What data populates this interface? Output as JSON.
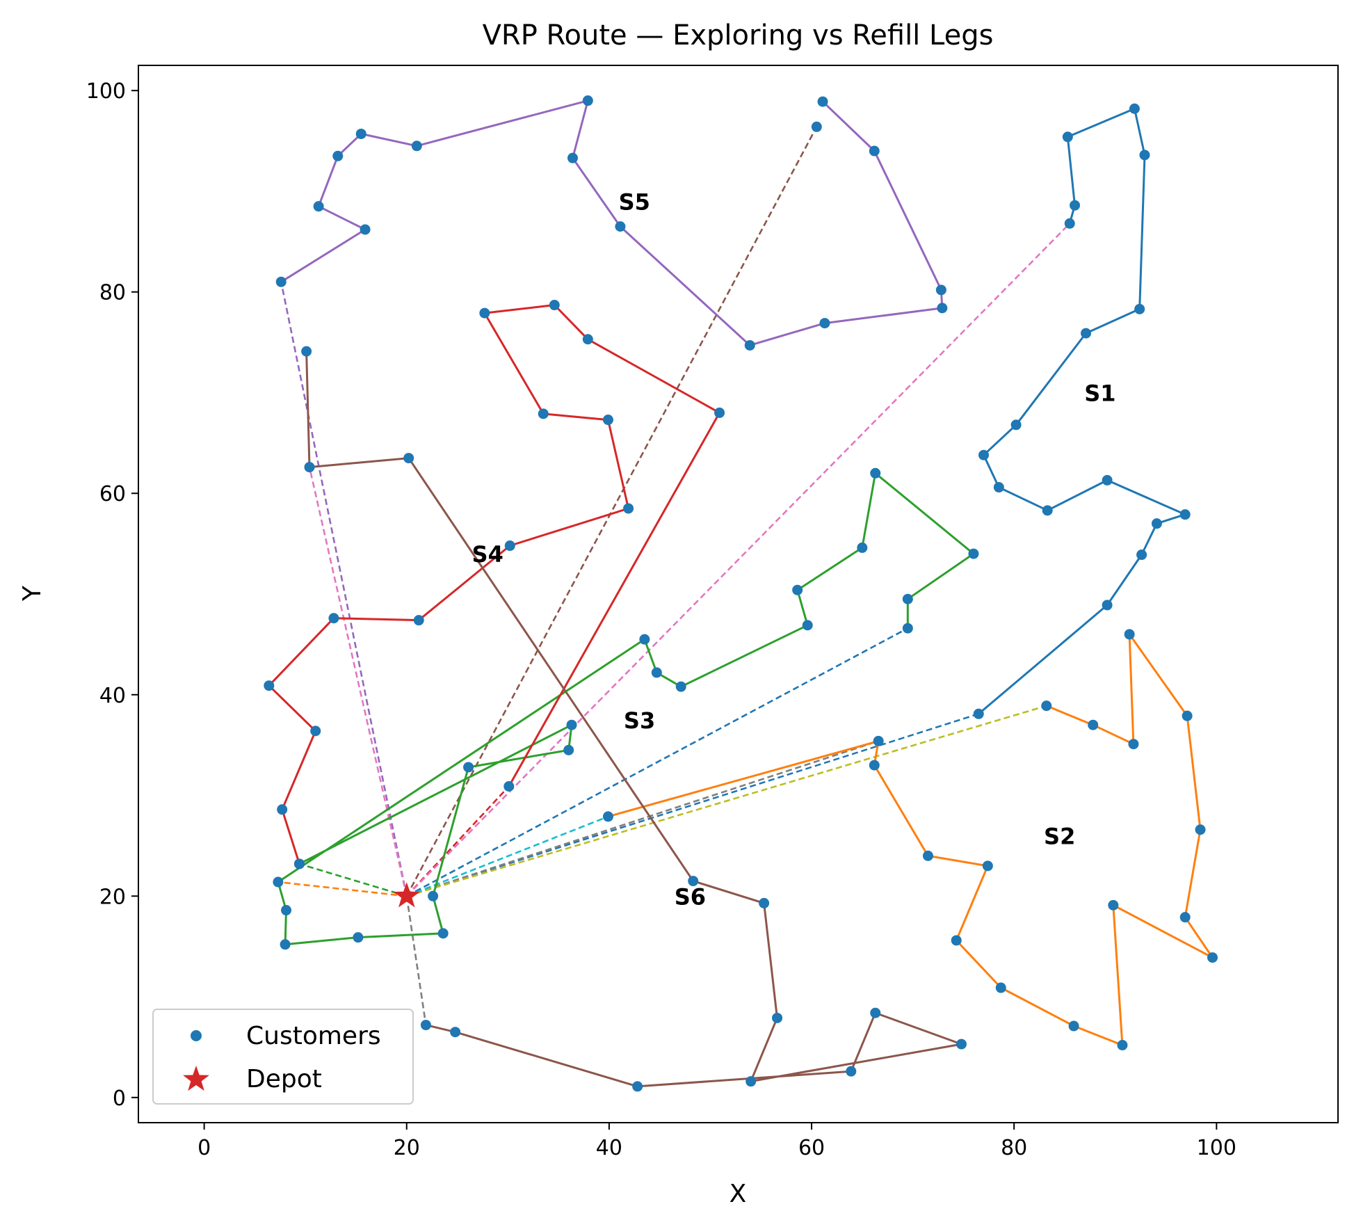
{
  "chart_data": {
    "type": "scatter",
    "title": "VRP Route — Exploring vs Refill Legs",
    "xlabel": "X",
    "ylabel": "Y",
    "xlim": [
      -6.5,
      112
    ],
    "ylim": [
      -2.5,
      102.5
    ],
    "xticks": [
      0,
      20,
      40,
      60,
      80,
      100
    ],
    "yticks": [
      0,
      20,
      40,
      60,
      80,
      100
    ],
    "grid": false,
    "legend": {
      "placement": "lower-left",
      "entries": [
        {
          "label": "Customers",
          "marker": "circle",
          "color": "#1f77b4"
        },
        {
          "label": "Depot",
          "marker": "star",
          "color": "#d62728"
        }
      ]
    },
    "depot": {
      "x": 20,
      "y": 20,
      "color": "#d62728"
    },
    "customer_color": "#1f77b4",
    "exploring_legs": [
      {
        "name": "S1",
        "label_pos": [
          88.5,
          70
        ],
        "color": "#1f77b4",
        "points": [
          [
            85.5,
            86.8
          ],
          [
            86.0,
            88.6
          ],
          [
            85.3,
            95.4
          ],
          [
            91.9,
            98.2
          ],
          [
            92.9,
            93.6
          ],
          [
            92.4,
            78.3
          ],
          [
            87.1,
            75.9
          ],
          [
            80.2,
            66.8
          ],
          [
            77.0,
            63.8
          ],
          [
            78.5,
            60.6
          ],
          [
            83.3,
            58.3
          ],
          [
            89.2,
            61.3
          ],
          [
            96.9,
            57.9
          ],
          [
            94.1,
            57.0
          ],
          [
            92.6,
            53.9
          ],
          [
            89.2,
            48.9
          ],
          [
            76.5,
            38.1
          ]
        ]
      },
      {
        "name": "S2",
        "label_pos": [
          84.5,
          26
        ],
        "color": "#ff7f0e",
        "points": [
          [
            39.9,
            27.9
          ],
          [
            66.6,
            35.4
          ],
          [
            66.2,
            33.0
          ],
          [
            71.5,
            24.0
          ],
          [
            77.4,
            23.0
          ],
          [
            74.3,
            15.6
          ],
          [
            78.7,
            10.9
          ],
          [
            85.9,
            7.1
          ],
          [
            90.7,
            5.2
          ],
          [
            89.8,
            19.1
          ],
          [
            99.6,
            13.9
          ],
          [
            96.9,
            17.9
          ],
          [
            98.4,
            26.6
          ],
          [
            97.1,
            37.9
          ],
          [
            91.4,
            46.0
          ],
          [
            91.8,
            35.1
          ],
          [
            87.8,
            37.0
          ],
          [
            83.2,
            38.9
          ]
        ]
      },
      {
        "name": "S3",
        "label_pos": [
          43,
          37.5
        ],
        "color": "#2ca02c",
        "points": [
          [
            9.4,
            23.2
          ],
          [
            36.3,
            37.0
          ],
          [
            36.0,
            34.5
          ],
          [
            26.1,
            32.8
          ],
          [
            22.6,
            20.0
          ],
          [
            23.6,
            16.3
          ],
          [
            15.2,
            15.9
          ],
          [
            8.0,
            15.2
          ],
          [
            8.1,
            18.6
          ],
          [
            7.3,
            21.4
          ],
          [
            43.5,
            45.5
          ],
          [
            44.7,
            42.2
          ],
          [
            47.1,
            40.8
          ],
          [
            59.6,
            46.9
          ],
          [
            58.6,
            50.4
          ],
          [
            65.0,
            54.6
          ],
          [
            66.3,
            62.0
          ],
          [
            76.0,
            54.0
          ],
          [
            69.5,
            49.5
          ],
          [
            69.5,
            46.6
          ]
        ]
      },
      {
        "name": "S4",
        "label_pos": [
          28,
          54
        ],
        "color": "#d62728",
        "points": [
          [
            30.1,
            30.9
          ],
          [
            50.9,
            68.0
          ],
          [
            37.9,
            75.3
          ],
          [
            34.6,
            78.7
          ],
          [
            27.7,
            77.9
          ],
          [
            33.5,
            67.9
          ],
          [
            39.9,
            67.3
          ],
          [
            41.9,
            58.5
          ],
          [
            30.2,
            54.8
          ],
          [
            21.2,
            47.4
          ],
          [
            12.8,
            47.6
          ],
          [
            6.4,
            40.9
          ],
          [
            11.0,
            36.4
          ],
          [
            7.7,
            28.6
          ],
          [
            9.4,
            23.2
          ]
        ]
      },
      {
        "name": "S5",
        "label_pos": [
          42.5,
          89
        ],
        "color": "#9467bd",
        "points": [
          [
            61.1,
            98.9
          ],
          [
            66.2,
            94.0
          ],
          [
            72.8,
            80.2
          ],
          [
            72.9,
            78.4
          ],
          [
            61.3,
            76.9
          ],
          [
            53.9,
            74.7
          ],
          [
            41.1,
            86.5
          ],
          [
            36.4,
            93.3
          ],
          [
            37.9,
            99.0
          ],
          [
            21.0,
            94.5
          ],
          [
            15.5,
            95.7
          ],
          [
            13.2,
            93.5
          ],
          [
            11.3,
            88.5
          ],
          [
            15.9,
            86.2
          ],
          [
            7.6,
            81.0
          ]
        ]
      },
      {
        "name": "S6",
        "label_pos": [
          48,
          20
        ],
        "color": "#8c564b",
        "points": [
          [
            10.1,
            74.1
          ],
          [
            10.4,
            62.6
          ],
          [
            20.2,
            63.5
          ],
          [
            48.3,
            21.5
          ],
          [
            55.3,
            19.3
          ],
          [
            56.6,
            7.9
          ],
          [
            54.0,
            1.6
          ],
          [
            74.8,
            5.3
          ],
          [
            66.3,
            8.4
          ],
          [
            63.9,
            2.6
          ],
          [
            42.8,
            1.1
          ],
          [
            24.8,
            6.5
          ],
          [
            21.9,
            7.2
          ]
        ]
      }
    ],
    "refill_legs": [
      {
        "color": "#1f77b4",
        "from": [
          20,
          20
        ],
        "to": [
          69.5,
          46.6
        ]
      },
      {
        "color": "#1f77b4",
        "from": [
          20,
          20
        ],
        "to": [
          76.5,
          38.1
        ]
      },
      {
        "color": "#ff7f0e",
        "from": [
          20,
          20
        ],
        "to": [
          7.3,
          21.4
        ]
      },
      {
        "color": "#2ca02c",
        "from": [
          20,
          20
        ],
        "to": [
          9.4,
          23.2
        ]
      },
      {
        "color": "#d62728",
        "from": [
          20,
          20
        ],
        "to": [
          30.1,
          30.9
        ]
      },
      {
        "color": "#9467bd",
        "from": [
          20,
          20
        ],
        "to": [
          7.6,
          81.0
        ]
      },
      {
        "color": "#8c564b",
        "from": [
          20,
          20
        ],
        "to": [
          60.5,
          96.4
        ]
      },
      {
        "color": "#e377c2",
        "from": [
          20,
          20
        ],
        "to": [
          85.5,
          86.8
        ]
      },
      {
        "color": "#e377c2",
        "from": [
          20,
          20
        ],
        "to": [
          10.4,
          62.6
        ]
      },
      {
        "color": "#7f7f7f",
        "from": [
          20,
          20
        ],
        "to": [
          21.9,
          7.2
        ]
      },
      {
        "color": "#7f7f7f",
        "from": [
          20,
          20
        ],
        "to": [
          66.6,
          35.4
        ]
      },
      {
        "color": "#bcbd22",
        "from": [
          20,
          20
        ],
        "to": [
          83.2,
          38.9
        ]
      },
      {
        "color": "#17becf",
        "from": [
          20,
          20
        ],
        "to": [
          39.9,
          27.9
        ]
      }
    ],
    "extra_customers": [
      [
        60.5,
        96.4
      ]
    ]
  }
}
